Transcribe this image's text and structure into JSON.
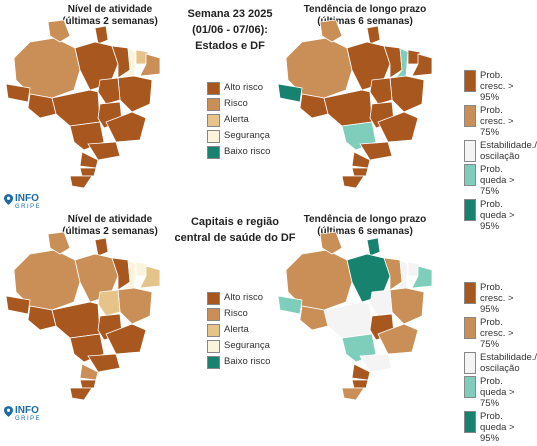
{
  "top": {
    "left_title": [
      "Nível de atividade",
      "(últimas 2 semanas)"
    ],
    "center_title": [
      "Semana 23 2025",
      "(01/06 - 07/06):",
      "Estados e DF"
    ],
    "right_title": [
      "Tendência de longo prazo",
      "(últimas 6 semanas)"
    ]
  },
  "bottom": {
    "left_title": [
      "Nível de atividade",
      "(últimas 2 semanas)"
    ],
    "center_title": [
      "Capitais e região",
      "central de saúde do DF"
    ],
    "right_title": [
      "Tendência de longo prazo",
      "(últimas 6 semanas)"
    ]
  },
  "activity_legend": [
    {
      "label": "Alto risco",
      "color": "#a8571f"
    },
    {
      "label": "Risco",
      "color": "#c98f57"
    },
    {
      "label": "Alerta",
      "color": "#e6c489"
    },
    {
      "label": "Segurança",
      "color": "#fbf4dc"
    },
    {
      "label": "Baixo risco",
      "color": "#17826e"
    }
  ],
  "trend_legend": [
    {
      "label": "Prob. cresc. > 95%",
      "color": "#a8571f"
    },
    {
      "label": "Prob. cresc. > 75%",
      "color": "#c98f57"
    },
    {
      "label": "Estabilidade./ oscilação",
      "color": "#f4f4f4"
    },
    {
      "label": "Prob. queda > 75%",
      "color": "#7fcdbb"
    },
    {
      "label": "Prob. queda > 95%",
      "color": "#17826e"
    }
  ],
  "logo": {
    "line1": "INFO",
    "line2": "GRIPE"
  },
  "colors": {
    "alto": "#a8571f",
    "risco": "#c98f57",
    "alerta": "#e6c489",
    "seguranca": "#fbf4dc",
    "baixo": "#17826e",
    "queda75": "#7fcdbb",
    "estab": "#f4f4f4"
  }
}
